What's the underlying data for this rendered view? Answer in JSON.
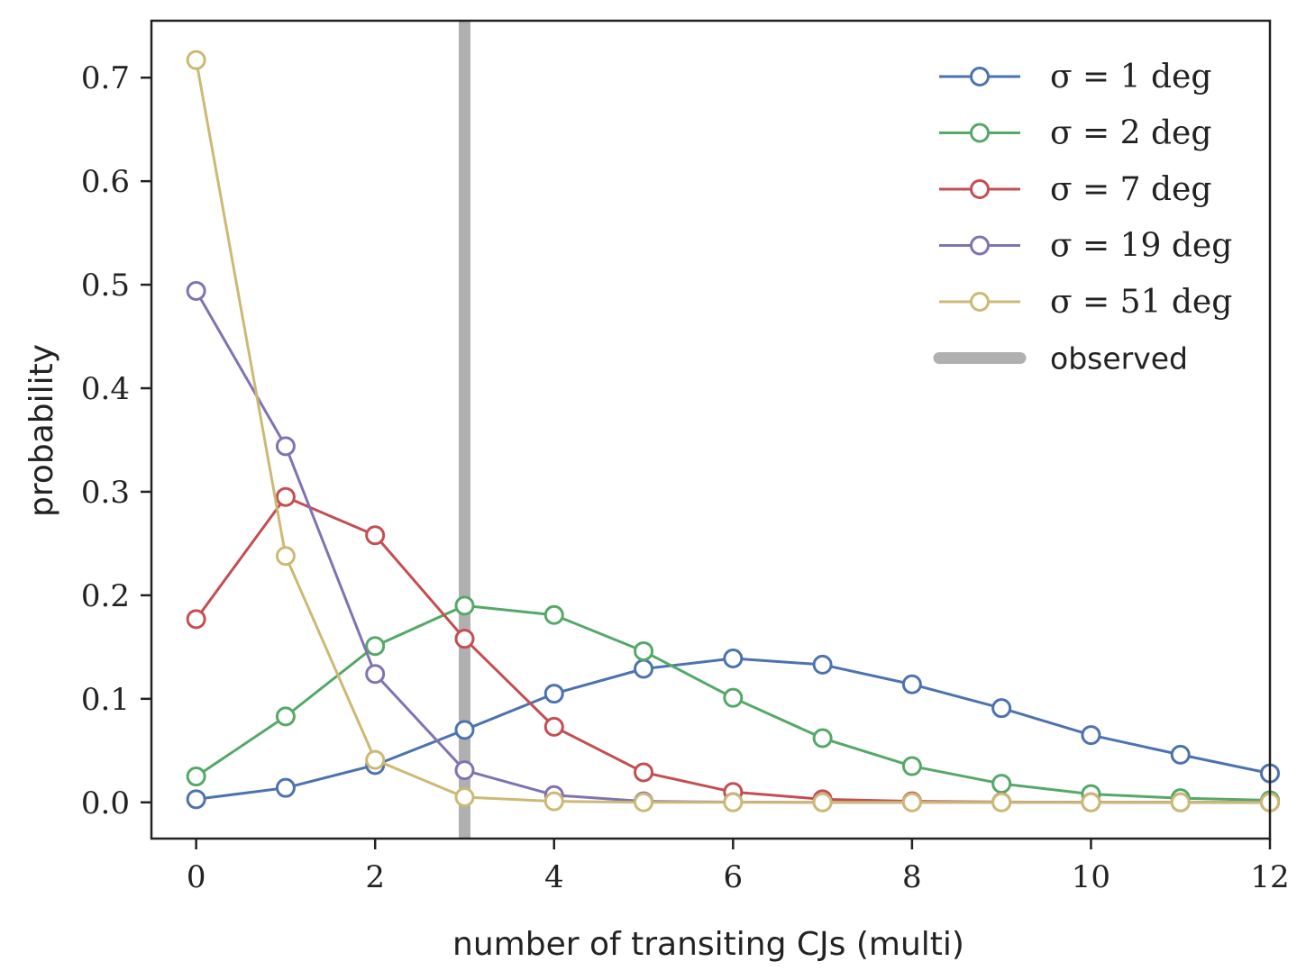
{
  "chart_data": {
    "type": "line",
    "title": "",
    "xlabel": "number of transiting CJs (multi)",
    "ylabel": "probability",
    "xlim": [
      -0.5,
      12
    ],
    "ylim": [
      -0.035,
      0.755
    ],
    "xticks": [
      0,
      2,
      4,
      6,
      8,
      10,
      12
    ],
    "yticks": [
      0.0,
      0.1,
      0.2,
      0.3,
      0.4,
      0.5,
      0.6,
      0.7
    ],
    "xtick_labels": [
      "0",
      "2",
      "4",
      "6",
      "8",
      "10",
      "12"
    ],
    "ytick_labels": [
      "0.0",
      "0.1",
      "0.2",
      "0.3",
      "0.4",
      "0.5",
      "0.6",
      "0.7"
    ],
    "grid": false,
    "legend_position": "top-right",
    "x": [
      0,
      1,
      2,
      3,
      4,
      5,
      6,
      7,
      8,
      9,
      10,
      11,
      12
    ],
    "series": [
      {
        "name": "σ = 1 deg",
        "sigma": "1",
        "color": "#4c72b0",
        "values": [
          0.003,
          0.014,
          0.036,
          0.07,
          0.105,
          0.129,
          0.139,
          0.133,
          0.114,
          0.091,
          0.065,
          0.046,
          0.028
        ]
      },
      {
        "name": "σ = 2 deg",
        "sigma": "2",
        "color": "#55a868",
        "values": [
          0.025,
          0.083,
          0.151,
          0.19,
          0.181,
          0.146,
          0.101,
          0.062,
          0.035,
          0.018,
          0.008,
          0.004,
          0.002
        ]
      },
      {
        "name": "σ = 7 deg",
        "sigma": "7",
        "color": "#c44e52",
        "values": [
          0.177,
          0.295,
          0.258,
          0.158,
          0.073,
          0.029,
          0.01,
          0.003,
          0.001,
          0.0003,
          0.0001,
          0.0,
          0.0
        ]
      },
      {
        "name": "σ = 19 deg",
        "sigma": "19",
        "color": "#8172b2",
        "values": [
          0.494,
          0.344,
          0.124,
          0.031,
          0.007,
          0.001,
          0.0002,
          0.0,
          0.0,
          0.0,
          0.0,
          0.0,
          0.0
        ]
      },
      {
        "name": "σ = 51 deg",
        "sigma": "51",
        "color": "#ccb974",
        "values": [
          0.717,
          0.238,
          0.041,
          0.005,
          0.001,
          0.0,
          0.0,
          0.0,
          0.0,
          0.0,
          0.0,
          0.0,
          0.0
        ]
      }
    ],
    "observed": {
      "label": "observed",
      "x": 3,
      "color": "#b0b0b0"
    }
  }
}
